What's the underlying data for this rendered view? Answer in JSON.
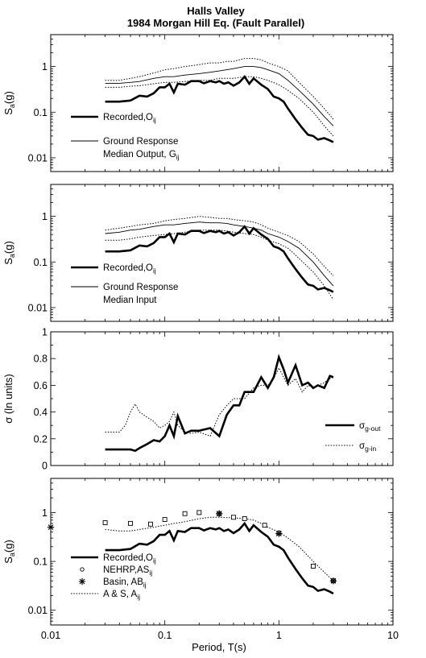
{
  "figure": {
    "title_line1": "Halls Valley",
    "title_line2": "1984 Morgan Hill Eq. (Fault Parallel)",
    "xlabel": "Period, T(s)",
    "x_ticks": [
      "0.01",
      "0.1",
      "1",
      "10"
    ]
  },
  "chart_data": [
    {
      "type": "line",
      "xscale": "log",
      "yscale": "log",
      "xlim": [
        0.01,
        10
      ],
      "ylim": [
        0.005,
        5
      ],
      "ylabel": "Sa(g)",
      "y_ticks": [
        {
          "v": 1,
          "label": "1"
        },
        {
          "v": 0.1,
          "label": "0.1"
        },
        {
          "v": 0.01,
          "label": "0.01"
        }
      ],
      "legend": [
        {
          "style": "thick",
          "lines": [
            "Recorded,Oij"
          ]
        },
        {
          "style": "thin",
          "lines": [
            "Ground Response",
            "Median Output, Gij"
          ]
        }
      ],
      "series": [
        {
          "key": "recorded",
          "style": "thick",
          "x": [
            0.03,
            0.04,
            0.05,
            0.06,
            0.07,
            0.08,
            0.09,
            0.1,
            0.11,
            0.12,
            0.13,
            0.15,
            0.17,
            0.2,
            0.22,
            0.25,
            0.28,
            0.3,
            0.33,
            0.36,
            0.4,
            0.45,
            0.5,
            0.55,
            0.6,
            0.7,
            0.8,
            0.9,
            1.0,
            1.1,
            1.2,
            1.4,
            1.6,
            1.8,
            2.0,
            2.2,
            2.5,
            2.8,
            3.0
          ],
          "y": [
            0.17,
            0.17,
            0.18,
            0.23,
            0.22,
            0.26,
            0.35,
            0.35,
            0.42,
            0.27,
            0.42,
            0.4,
            0.48,
            0.48,
            0.43,
            0.48,
            0.45,
            0.48,
            0.42,
            0.45,
            0.38,
            0.45,
            0.6,
            0.42,
            0.55,
            0.4,
            0.32,
            0.22,
            0.2,
            0.17,
            0.12,
            0.07,
            0.045,
            0.032,
            0.03,
            0.025,
            0.027,
            0.024,
            0.022
          ]
        },
        {
          "key": "median_output",
          "style": "thin",
          "x": [
            0.03,
            0.04,
            0.05,
            0.06,
            0.08,
            0.1,
            0.12,
            0.15,
            0.2,
            0.25,
            0.3,
            0.35,
            0.4,
            0.5,
            0.6,
            0.7,
            0.8,
            1.0,
            1.2,
            1.5,
            2.0,
            2.5,
            3.0
          ],
          "y": [
            0.43,
            0.43,
            0.45,
            0.47,
            0.55,
            0.6,
            0.6,
            0.65,
            0.7,
            0.75,
            0.8,
            0.85,
            0.9,
            1.0,
            1.0,
            0.95,
            0.85,
            0.7,
            0.5,
            0.3,
            0.15,
            0.08,
            0.05
          ]
        },
        {
          "key": "upper_bound",
          "style": "dotted",
          "x": [
            0.03,
            0.04,
            0.05,
            0.06,
            0.08,
            0.1,
            0.12,
            0.15,
            0.2,
            0.25,
            0.3,
            0.35,
            0.4,
            0.5,
            0.6,
            0.7,
            0.8,
            1.0,
            1.2,
            1.5,
            2.0,
            2.5,
            3.0
          ],
          "y": [
            0.5,
            0.5,
            0.55,
            0.6,
            0.72,
            0.85,
            0.9,
            1.0,
            1.1,
            1.2,
            1.2,
            1.3,
            1.3,
            1.5,
            1.5,
            1.4,
            1.2,
            1.0,
            0.8,
            0.45,
            0.22,
            0.12,
            0.07
          ]
        },
        {
          "key": "lower_bound",
          "style": "dotted",
          "x": [
            0.03,
            0.04,
            0.05,
            0.06,
            0.08,
            0.1,
            0.12,
            0.15,
            0.2,
            0.25,
            0.3,
            0.35,
            0.4,
            0.5,
            0.6,
            0.7,
            0.8,
            1.0,
            1.2,
            1.5,
            2.0,
            2.5,
            3.0
          ],
          "y": [
            0.35,
            0.35,
            0.37,
            0.38,
            0.42,
            0.45,
            0.45,
            0.47,
            0.5,
            0.5,
            0.55,
            0.55,
            0.55,
            0.6,
            0.6,
            0.55,
            0.5,
            0.4,
            0.3,
            0.2,
            0.1,
            0.05,
            0.03
          ]
        }
      ]
    },
    {
      "type": "line",
      "xscale": "log",
      "yscale": "log",
      "xlim": [
        0.01,
        10
      ],
      "ylim": [
        0.005,
        5
      ],
      "ylabel": "Sa(g)",
      "y_ticks": [
        {
          "v": 1,
          "label": "1"
        },
        {
          "v": 0.1,
          "label": "0.1"
        },
        {
          "v": 0.01,
          "label": "0.01"
        }
      ],
      "legend": [
        {
          "style": "thick",
          "lines": [
            "Recorded,Oij"
          ]
        },
        {
          "style": "thin",
          "lines": [
            "Ground Response",
            "Median Input"
          ]
        }
      ],
      "series": [
        {
          "key": "recorded",
          "style": "thick",
          "x": [
            0.03,
            0.04,
            0.05,
            0.06,
            0.07,
            0.08,
            0.09,
            0.1,
            0.11,
            0.12,
            0.13,
            0.15,
            0.17,
            0.2,
            0.22,
            0.25,
            0.28,
            0.3,
            0.33,
            0.36,
            0.4,
            0.45,
            0.5,
            0.55,
            0.6,
            0.7,
            0.8,
            0.9,
            1.0,
            1.1,
            1.2,
            1.4,
            1.6,
            1.8,
            2.0,
            2.2,
            2.5,
            2.8,
            3.0
          ],
          "y": [
            0.17,
            0.17,
            0.18,
            0.23,
            0.22,
            0.26,
            0.35,
            0.35,
            0.42,
            0.27,
            0.42,
            0.4,
            0.48,
            0.48,
            0.43,
            0.48,
            0.45,
            0.48,
            0.42,
            0.45,
            0.38,
            0.45,
            0.6,
            0.42,
            0.55,
            0.4,
            0.32,
            0.22,
            0.2,
            0.17,
            0.12,
            0.07,
            0.045,
            0.032,
            0.03,
            0.025,
            0.027,
            0.024,
            0.022
          ]
        },
        {
          "key": "median_input",
          "style": "thin",
          "x": [
            0.03,
            0.04,
            0.05,
            0.06,
            0.08,
            0.1,
            0.12,
            0.15,
            0.2,
            0.25,
            0.3,
            0.35,
            0.4,
            0.5,
            0.6,
            0.7,
            0.8,
            1.0,
            1.2,
            1.5,
            2.0,
            2.5,
            3.0
          ],
          "y": [
            0.42,
            0.45,
            0.5,
            0.52,
            0.6,
            0.65,
            0.65,
            0.7,
            0.75,
            0.72,
            0.72,
            0.7,
            0.65,
            0.6,
            0.55,
            0.5,
            0.42,
            0.35,
            0.28,
            0.2,
            0.1,
            0.05,
            0.03
          ]
        },
        {
          "key": "upper_bound",
          "style": "dotted",
          "x": [
            0.03,
            0.04,
            0.05,
            0.06,
            0.08,
            0.1,
            0.12,
            0.15,
            0.2,
            0.25,
            0.3,
            0.35,
            0.4,
            0.5,
            0.6,
            0.7,
            0.8,
            1.0,
            1.2,
            1.5,
            2.0,
            2.5,
            3.0
          ],
          "y": [
            0.5,
            0.55,
            0.6,
            0.65,
            0.7,
            0.8,
            0.85,
            0.9,
            1.0,
            0.95,
            0.9,
            0.9,
            0.85,
            0.8,
            0.75,
            0.65,
            0.55,
            0.45,
            0.38,
            0.28,
            0.15,
            0.08,
            0.05
          ]
        },
        {
          "key": "lower_bound",
          "style": "dotted",
          "x": [
            0.03,
            0.04,
            0.05,
            0.06,
            0.08,
            0.1,
            0.12,
            0.15,
            0.2,
            0.25,
            0.3,
            0.35,
            0.4,
            0.5,
            0.6,
            0.7,
            0.8,
            1.0,
            1.2,
            1.5,
            2.0,
            2.5,
            3.0
          ],
          "y": [
            0.3,
            0.3,
            0.32,
            0.35,
            0.38,
            0.4,
            0.42,
            0.45,
            0.5,
            0.5,
            0.5,
            0.48,
            0.45,
            0.42,
            0.4,
            0.35,
            0.3,
            0.25,
            0.2,
            0.12,
            0.06,
            0.03,
            0.015
          ]
        }
      ]
    },
    {
      "type": "line",
      "xscale": "log",
      "yscale": "linear",
      "xlim": [
        0.01,
        10
      ],
      "ylim": [
        0,
        1
      ],
      "ylabel": "σ (ln units)",
      "y_ticks": [
        {
          "v": 0,
          "label": "0"
        },
        {
          "v": 0.2,
          "label": "0.2"
        },
        {
          "v": 0.4,
          "label": "0.4"
        },
        {
          "v": 0.6,
          "label": "0.6"
        },
        {
          "v": 0.8,
          "label": "0.8"
        },
        {
          "v": 1,
          "label": "1"
        }
      ],
      "legend": [
        {
          "style": "thick",
          "lines": [
            "σg-out"
          ]
        },
        {
          "style": "dotted",
          "lines": [
            "σg-in"
          ]
        }
      ],
      "series": [
        {
          "key": "sigma_g_out",
          "style": "thick",
          "x": [
            0.03,
            0.04,
            0.05,
            0.055,
            0.06,
            0.07,
            0.08,
            0.09,
            0.1,
            0.11,
            0.12,
            0.13,
            0.15,
            0.17,
            0.2,
            0.25,
            0.3,
            0.35,
            0.4,
            0.45,
            0.5,
            0.6,
            0.7,
            0.8,
            0.9,
            1.0,
            1.1,
            1.2,
            1.4,
            1.6,
            1.8,
            2.0,
            2.2,
            2.5,
            2.8,
            3.0
          ],
          "y": [
            0.12,
            0.12,
            0.12,
            0.11,
            0.13,
            0.16,
            0.19,
            0.18,
            0.22,
            0.3,
            0.22,
            0.37,
            0.24,
            0.26,
            0.26,
            0.28,
            0.22,
            0.38,
            0.45,
            0.45,
            0.55,
            0.55,
            0.66,
            0.58,
            0.66,
            0.81,
            0.72,
            0.62,
            0.75,
            0.6,
            0.62,
            0.58,
            0.6,
            0.58,
            0.67,
            0.66
          ]
        },
        {
          "key": "sigma_g_in",
          "style": "dotted",
          "x": [
            0.03,
            0.04,
            0.045,
            0.05,
            0.055,
            0.06,
            0.07,
            0.08,
            0.09,
            0.1,
            0.11,
            0.12,
            0.13,
            0.15,
            0.17,
            0.2,
            0.25,
            0.3,
            0.35,
            0.4,
            0.5,
            0.6,
            0.7,
            0.8,
            0.9,
            1.0,
            1.1,
            1.2,
            1.4,
            1.6,
            1.8,
            2.0,
            2.2,
            2.5,
            2.8,
            3.0
          ],
          "y": [
            0.25,
            0.25,
            0.3,
            0.4,
            0.46,
            0.4,
            0.36,
            0.33,
            0.28,
            0.3,
            0.33,
            0.4,
            0.3,
            0.25,
            0.24,
            0.25,
            0.22,
            0.38,
            0.45,
            0.5,
            0.5,
            0.58,
            0.6,
            0.6,
            0.65,
            0.73,
            0.66,
            0.6,
            0.65,
            0.55,
            0.6,
            0.58,
            0.6,
            0.62,
            0.65,
            0.66
          ]
        }
      ]
    },
    {
      "type": "line",
      "xscale": "log",
      "yscale": "log",
      "xlim": [
        0.01,
        10
      ],
      "ylim": [
        0.005,
        5
      ],
      "ylabel": "Sa(g)",
      "y_ticks": [
        {
          "v": 1,
          "label": "1"
        },
        {
          "v": 0.1,
          "label": "0.1"
        },
        {
          "v": 0.01,
          "label": "0.01"
        }
      ],
      "legend": [
        {
          "style": "thick",
          "lines": [
            "Recorded,Oij"
          ]
        },
        {
          "style": "square",
          "lines": [
            "NEHRP,ASij"
          ]
        },
        {
          "style": "star",
          "lines": [
            "Basin, ABij"
          ]
        },
        {
          "style": "dotted",
          "lines": [
            "A & S, Aij"
          ]
        }
      ],
      "series": [
        {
          "key": "recorded",
          "style": "thick",
          "x": [
            0.03,
            0.04,
            0.05,
            0.06,
            0.07,
            0.08,
            0.09,
            0.1,
            0.11,
            0.12,
            0.13,
            0.15,
            0.17,
            0.2,
            0.22,
            0.25,
            0.28,
            0.3,
            0.33,
            0.36,
            0.4,
            0.45,
            0.5,
            0.55,
            0.6,
            0.7,
            0.8,
            0.9,
            1.0,
            1.1,
            1.2,
            1.4,
            1.6,
            1.8,
            2.0,
            2.2,
            2.5,
            2.8,
            3.0
          ],
          "y": [
            0.17,
            0.17,
            0.18,
            0.23,
            0.22,
            0.26,
            0.35,
            0.35,
            0.42,
            0.27,
            0.42,
            0.4,
            0.48,
            0.48,
            0.43,
            0.48,
            0.45,
            0.48,
            0.42,
            0.45,
            0.38,
            0.45,
            0.6,
            0.42,
            0.55,
            0.4,
            0.32,
            0.22,
            0.2,
            0.17,
            0.12,
            0.07,
            0.045,
            0.032,
            0.03,
            0.025,
            0.027,
            0.024,
            0.022
          ]
        },
        {
          "key": "as_model",
          "style": "dotted",
          "x": [
            0.03,
            0.04,
            0.05,
            0.06,
            0.08,
            0.1,
            0.12,
            0.15,
            0.2,
            0.25,
            0.3,
            0.4,
            0.5,
            0.6,
            0.7,
            0.8,
            1.0,
            1.2,
            1.5,
            2.0,
            2.5,
            3.0
          ],
          "y": [
            0.45,
            0.42,
            0.42,
            0.45,
            0.5,
            0.55,
            0.6,
            0.65,
            0.75,
            0.8,
            0.8,
            0.78,
            0.75,
            0.7,
            0.6,
            0.5,
            0.4,
            0.3,
            0.2,
            0.1,
            0.06,
            0.04
          ]
        },
        {
          "key": "nehrp",
          "style": "square",
          "x": [
            0.03,
            0.05,
            0.075,
            0.1,
            0.15,
            0.2,
            0.3,
            0.4,
            0.5,
            0.75,
            1.0,
            2.0,
            3.0
          ],
          "y": [
            0.62,
            0.6,
            0.58,
            0.72,
            0.95,
            1.0,
            0.95,
            0.8,
            0.75,
            0.55,
            0.38,
            0.08,
            0.04
          ]
        },
        {
          "key": "basin",
          "style": "star",
          "x": [
            0.01,
            0.3,
            1.0,
            3.0
          ],
          "y": [
            0.5,
            0.95,
            0.37,
            0.04
          ]
        }
      ]
    }
  ]
}
